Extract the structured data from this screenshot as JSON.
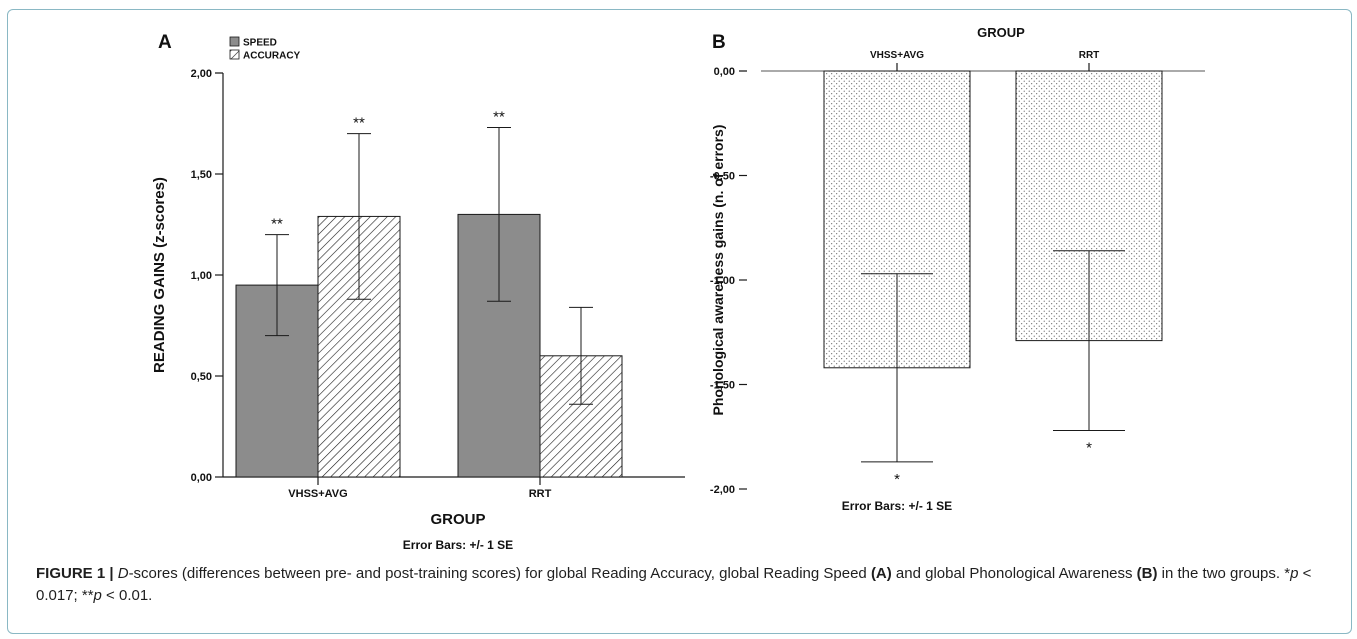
{
  "chart_data": [
    {
      "panel_label": "A",
      "type": "bar",
      "categories": [
        "VHSS+AVG",
        "RRT"
      ],
      "series": [
        {
          "name": "SPEED",
          "values": [
            0.95,
            1.3
          ],
          "error": [
            0.25,
            0.43
          ],
          "fill": "gray",
          "color": "#8c8c8c",
          "significance": [
            "**",
            "**"
          ]
        },
        {
          "name": "ACCURACY",
          "values": [
            1.29,
            0.6
          ],
          "error": [
            0.41,
            0.24
          ],
          "fill": "hatch",
          "color": "#ffffff",
          "significance": [
            "**",
            ""
          ]
        }
      ],
      "xlabel": "GROUP",
      "ylabel": "READING GAINS (z-scores)",
      "ylim": [
        0,
        2.0
      ],
      "yticks": [
        0,
        0.5,
        1.0,
        1.5,
        2.0
      ],
      "ytick_labels": [
        "0,00",
        "0,50",
        "1,00",
        "1,50",
        "2,00"
      ],
      "error_note": "Error Bars: +/- 1 SE",
      "legend_position": "top-left"
    },
    {
      "panel_label": "B",
      "type": "bar",
      "categories": [
        "VHSS+AVG",
        "RRT"
      ],
      "series": [
        {
          "values": [
            -1.42,
            -1.29
          ],
          "error": [
            0.45,
            0.43
          ],
          "fill": "dots",
          "color": "#ffffff",
          "significance": [
            "*",
            "*"
          ]
        }
      ],
      "title": "GROUP",
      "ylabel": "Phonological awareness gains (n. of errors)",
      "ylim": [
        -2.0,
        0.0
      ],
      "yticks": [
        0,
        -0.5,
        -1.0,
        -1.5,
        -2.0
      ],
      "ytick_labels": [
        "0,00",
        "-0,50",
        "-1,00",
        "-1,50",
        "-2,00"
      ],
      "error_note": "Error Bars: +/- 1 SE"
    }
  ],
  "caption": {
    "label": "FIGURE 1 |",
    "text_1": " ",
    "italic_d": "D",
    "text_2": "-scores (differences between pre- and post-training scores) for global Reading Accuracy, global Reading Speed ",
    "bold_a": "(A)",
    "text_3": " and global Phonological Awareness ",
    "bold_b": "(B)",
    "text_4": " in the two groups. *",
    "italic_p1": "p",
    "text_5": " < 0.017; **",
    "italic_p2": "p",
    "text_6": " < 0.01."
  },
  "colors": {
    "frame_border": "#8ab8c4",
    "speed_fill": "#8c8c8c",
    "axis": "#1a1a1a"
  }
}
